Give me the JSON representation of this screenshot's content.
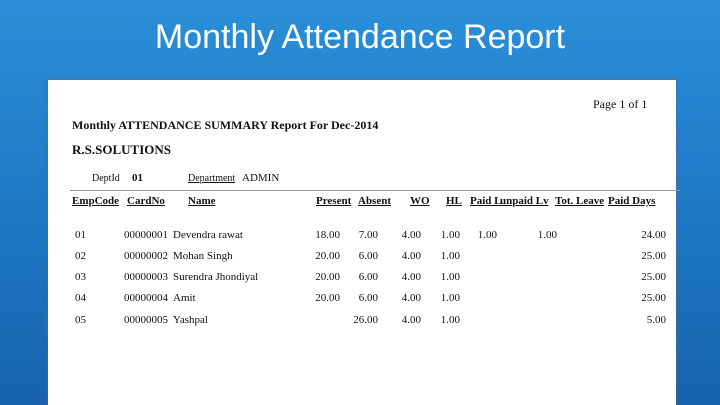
{
  "slide": {
    "title": "Monthly Attendance Report"
  },
  "report": {
    "page": "Page 1 of 1",
    "title": "Monthly ATTENDANCE SUMMARY Report For Dec-2014",
    "company": "R.S.SOLUTIONS",
    "dept_id_label": "DeptId",
    "dept_id": "01",
    "department_label": "Department",
    "department": "ADMIN",
    "table": {
      "columns": [
        "EmpCode",
        "CardNo",
        "Name",
        "Present",
        "Absent",
        "WO",
        "HL",
        "Paid L",
        "unpaid Lv",
        "Tot. Leave",
        "Paid Days"
      ],
      "rows": [
        [
          "01",
          "00000001",
          "Devendra rawat",
          "18.00",
          "7.00",
          "4.00",
          "1.00",
          "1.00",
          null,
          "1.00",
          "24.00"
        ],
        [
          "02",
          "00000002",
          "Mohan Singh",
          "20.00",
          "6.00",
          "4.00",
          "1.00",
          null,
          null,
          null,
          "25.00"
        ],
        [
          "03",
          "00000003",
          "Surendra Jhondiyal",
          "20.00",
          "6.00",
          "4.00",
          "1.00",
          null,
          null,
          null,
          "25.00"
        ],
        [
          "04",
          "00000004",
          "Amit",
          "20.00",
          "6.00",
          "4.00",
          "1.00",
          null,
          null,
          null,
          "25.00"
        ],
        [
          "05",
          "00000005",
          "Yashpal",
          null,
          "26.00",
          "4.00",
          "1.00",
          null,
          null,
          null,
          "5.00"
        ]
      ]
    }
  }
}
